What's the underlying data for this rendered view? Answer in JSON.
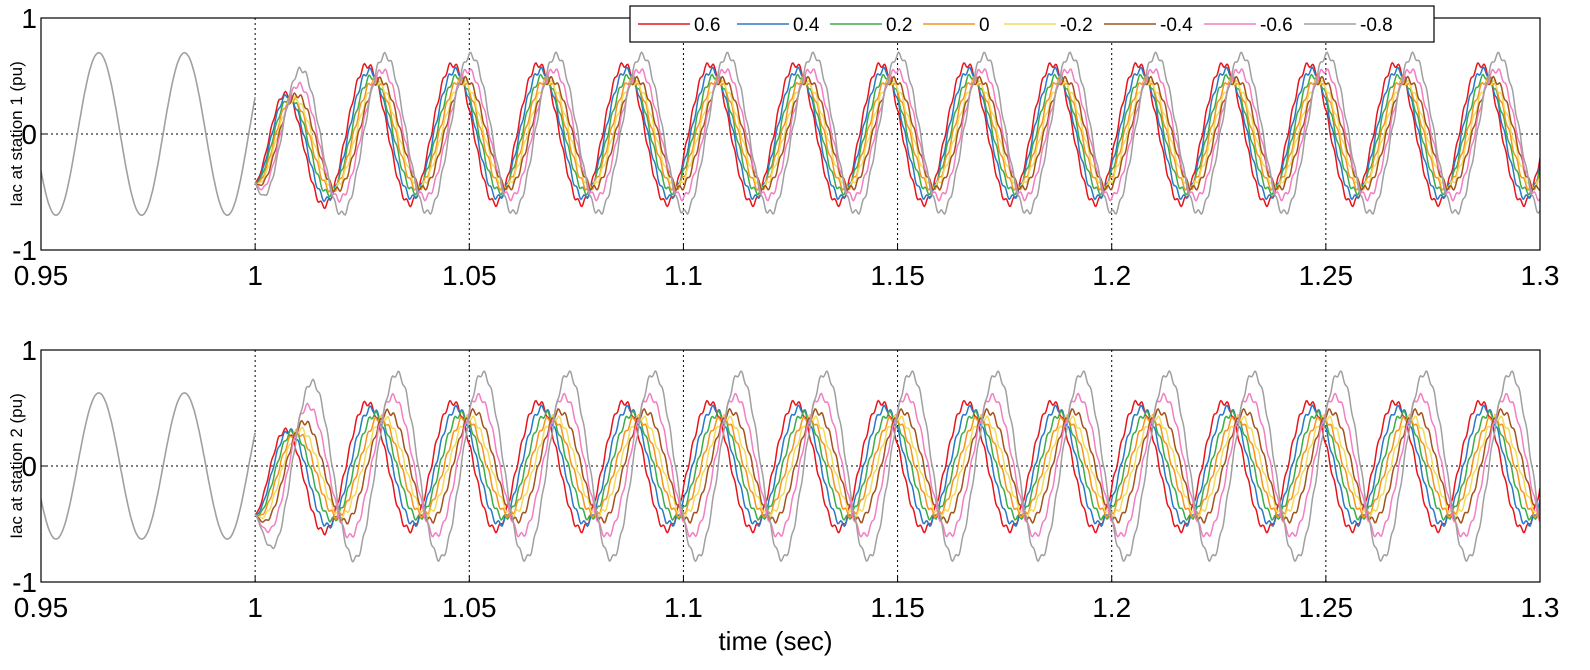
{
  "chart_data": [
    {
      "type": "line",
      "ylabel": "Iac at station 1 (pu)",
      "xlabel": "",
      "xlim": [
        0.95,
        1.3
      ],
      "ylim": [
        -1,
        1
      ],
      "xticks": [
        "0.95",
        "1",
        "1.05",
        "1.1",
        "1.15",
        "1.2",
        "1.25",
        "1.3"
      ],
      "yticks": [
        "-1",
        "0",
        "1"
      ],
      "grid": "dotted vertical lines at x ticks, dotted horizontal line at y = 0",
      "legend": "top-right",
      "frequency_hz": 50,
      "event_time": 1.0,
      "pre_event": {
        "series": "-0.8",
        "amplitude": 0.7
      },
      "series": [
        {
          "name": "0.6",
          "color": "#e8141c",
          "amplitude": 0.6,
          "phase_shift_ms": 0.0
        },
        {
          "name": "0.4",
          "color": "#2a78c8",
          "amplitude": 0.55,
          "phase_shift_ms": 0.6
        },
        {
          "name": "0.2",
          "color": "#3aad49",
          "amplitude": 0.5,
          "phase_shift_ms": 1.2
        },
        {
          "name": "0",
          "color": "#f7941d",
          "amplitude": 0.47,
          "phase_shift_ms": 1.8
        },
        {
          "name": "-0.2",
          "color": "#f1dc5c",
          "amplitude": 0.45,
          "phase_shift_ms": 2.4
        },
        {
          "name": "-0.4",
          "color": "#a3521e",
          "amplitude": 0.47,
          "phase_shift_ms": 3.0
        },
        {
          "name": "-0.6",
          "color": "#f27fc2",
          "amplitude": 0.55,
          "phase_shift_ms": 3.6
        },
        {
          "name": "-0.8",
          "color": "#a0a0a0",
          "amplitude": 0.68,
          "phase_shift_ms": 4.2
        }
      ]
    },
    {
      "type": "line",
      "ylabel": "Iac at station 2 (pu)",
      "xlabel": "time (sec)",
      "xlim": [
        0.95,
        1.3
      ],
      "ylim": [
        -1,
        1
      ],
      "xticks": [
        "0.95",
        "1",
        "1.05",
        "1.1",
        "1.15",
        "1.2",
        "1.25",
        "1.3"
      ],
      "yticks": [
        "-1",
        "0",
        "1"
      ],
      "grid": "dotted vertical lines at x ticks, dotted horizontal line at y = 0",
      "frequency_hz": 50,
      "event_time": 1.0,
      "pre_event": {
        "series": "-0.8",
        "amplitude": 0.63
      },
      "series": [
        {
          "name": "0.6",
          "color": "#e8141c",
          "amplitude": 0.55,
          "phase_shift_ms": 0.0
        },
        {
          "name": "0.4",
          "color": "#2a78c8",
          "amplitude": 0.5,
          "phase_shift_ms": 1.0
        },
        {
          "name": "0.2",
          "color": "#3aad49",
          "amplitude": 0.45,
          "phase_shift_ms": 2.0
        },
        {
          "name": "0",
          "color": "#f7941d",
          "amplitude": 0.42,
          "phase_shift_ms": 3.0
        },
        {
          "name": "-0.2",
          "color": "#f1dc5c",
          "amplitude": 0.42,
          "phase_shift_ms": 4.0
        },
        {
          "name": "-0.4",
          "color": "#a3521e",
          "amplitude": 0.47,
          "phase_shift_ms": 5.0
        },
        {
          "name": "-0.6",
          "color": "#f27fc2",
          "amplitude": 0.6,
          "phase_shift_ms": 6.0
        },
        {
          "name": "-0.8",
          "color": "#a0a0a0",
          "amplitude": 0.8,
          "phase_shift_ms": 7.0
        }
      ]
    }
  ]
}
